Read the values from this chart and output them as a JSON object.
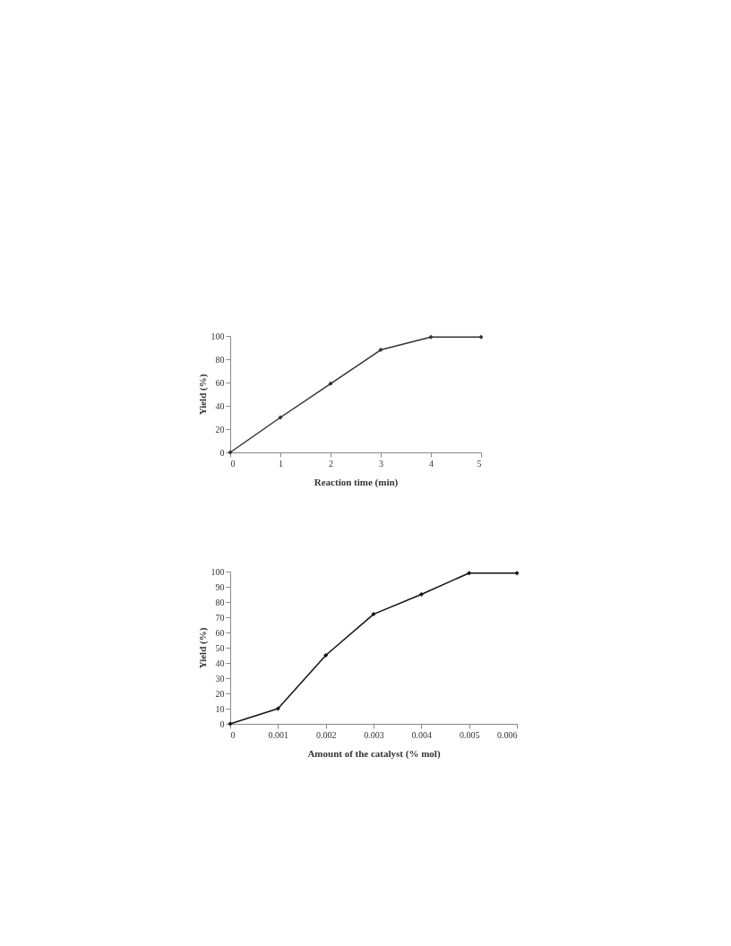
{
  "chart_data": [
    {
      "type": "line",
      "xlabel": "Reaction time (min)",
      "ylabel": "Yield  (%)",
      "x": [
        0,
        1,
        2,
        3,
        4,
        5
      ],
      "series": [
        {
          "color": "#333333",
          "values": [
            0,
            30,
            59,
            88,
            99,
            99
          ]
        }
      ],
      "xlim": [
        0,
        5
      ],
      "xticks": [
        0,
        1,
        2,
        3,
        4,
        5
      ],
      "ylim": [
        0,
        100
      ],
      "yticks": [
        0,
        20,
        40,
        60,
        80,
        100
      ],
      "grid": false,
      "marker": "diamond",
      "line_style": "solid"
    },
    {
      "type": "line",
      "xlabel": "Amount of the catalyst (% mol)",
      "ylabel": "Yield (%)",
      "x": [
        0,
        0.001,
        0.002,
        0.003,
        0.004,
        0.005,
        0.006
      ],
      "series": [
        {
          "color": "#111111",
          "values": [
            0,
            10,
            45,
            72,
            85,
            99,
            99
          ]
        }
      ],
      "xlim": [
        0,
        0.006
      ],
      "xticks": [
        0,
        0.001,
        0.002,
        0.003,
        0.004,
        0.005,
        0.006
      ],
      "ylim": [
        0,
        100
      ],
      "yticks": [
        0,
        10,
        20,
        30,
        40,
        50,
        60,
        70,
        80,
        90,
        100
      ],
      "grid": false,
      "marker": "diamond",
      "line_style": "solid"
    }
  ]
}
